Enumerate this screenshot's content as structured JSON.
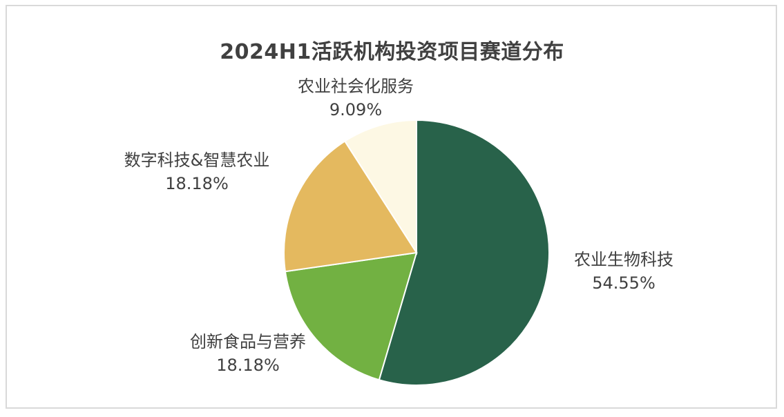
{
  "chart_data": {
    "type": "pie",
    "title": "2024H1活跃机构投资项目赛道分布",
    "slices": [
      {
        "label": "农业生物科技",
        "value": 54.55,
        "percent_label": "54.55%",
        "color": "#28624a"
      },
      {
        "label": "创新食品与营养",
        "value": 18.18,
        "percent_label": "18.18%",
        "color": "#72b142"
      },
      {
        "label": "数字科技&智慧农业",
        "value": 18.18,
        "percent_label": "18.18%",
        "color": "#e4b95f"
      },
      {
        "label": "农业社会化服务",
        "value": 9.09,
        "percent_label": "9.09%",
        "color": "#fdf8e4"
      }
    ],
    "direction": "clockwise",
    "start": "top",
    "legend": "none",
    "labels": "outside"
  }
}
